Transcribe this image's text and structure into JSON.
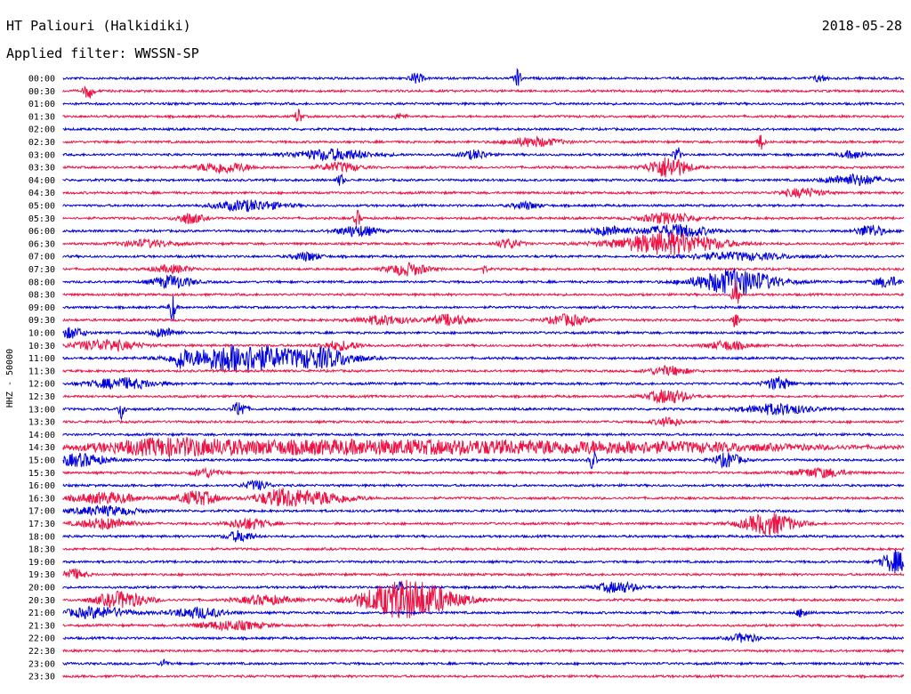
{
  "header": {
    "station": "HT Paliouri (Halkidiki)",
    "date": "2018-05-28",
    "filter": "Applied filter: WWSSN-SP"
  },
  "chart_data": {
    "type": "line",
    "title": "HT Paliouri (Halkidiki)",
    "subtitle": "Applied filter: WWSSN-SP",
    "ylabel": "HHZ - 50000",
    "xlabel": "",
    "colors": {
      "even": "#0000dd",
      "odd": "#ee1144"
    },
    "rows": [
      {
        "label": "00:00",
        "color": "even",
        "bursts": [
          [
            0.42,
            0.01,
            6
          ],
          [
            0.54,
            0.005,
            12
          ],
          [
            0.9,
            0.01,
            4
          ]
        ]
      },
      {
        "label": "00:30",
        "color": "odd",
        "bursts": [
          [
            0.03,
            0.008,
            8
          ]
        ]
      },
      {
        "label": "01:00",
        "color": "even",
        "bursts": []
      },
      {
        "label": "01:30",
        "color": "odd",
        "bursts": [
          [
            0.28,
            0.005,
            9
          ],
          [
            0.4,
            0.01,
            3
          ]
        ]
      },
      {
        "label": "02:00",
        "color": "even",
        "bursts": []
      },
      {
        "label": "02:30",
        "color": "odd",
        "bursts": [
          [
            0.56,
            0.04,
            5
          ],
          [
            0.83,
            0.005,
            9
          ]
        ]
      },
      {
        "label": "03:00",
        "color": "even",
        "bursts": [
          [
            0.32,
            0.06,
            6
          ],
          [
            0.49,
            0.02,
            5
          ],
          [
            0.73,
            0.005,
            10
          ],
          [
            0.94,
            0.02,
            4
          ]
        ]
      },
      {
        "label": "03:30",
        "color": "odd",
        "bursts": [
          [
            0.19,
            0.04,
            6
          ],
          [
            0.33,
            0.03,
            5
          ],
          [
            0.72,
            0.03,
            12
          ]
        ]
      },
      {
        "label": "04:00",
        "color": "even",
        "bursts": [
          [
            0.33,
            0.005,
            7
          ],
          [
            0.94,
            0.04,
            6
          ]
        ]
      },
      {
        "label": "04:30",
        "color": "odd",
        "bursts": [
          [
            0.88,
            0.03,
            5
          ]
        ]
      },
      {
        "label": "05:00",
        "color": "even",
        "bursts": [
          [
            0.22,
            0.05,
            6
          ],
          [
            0.55,
            0.02,
            4
          ]
        ]
      },
      {
        "label": "05:30",
        "color": "odd",
        "bursts": [
          [
            0.15,
            0.02,
            6
          ],
          [
            0.35,
            0.005,
            9
          ],
          [
            0.72,
            0.04,
            6
          ]
        ]
      },
      {
        "label": "06:00",
        "color": "even",
        "bursts": [
          [
            0.35,
            0.03,
            6
          ],
          [
            0.65,
            0.03,
            5
          ],
          [
            0.73,
            0.05,
            7
          ],
          [
            0.96,
            0.02,
            7
          ]
        ]
      },
      {
        "label": "06:30",
        "color": "odd",
        "bursts": [
          [
            0.1,
            0.04,
            4
          ],
          [
            0.53,
            0.02,
            5
          ],
          [
            0.72,
            0.08,
            12
          ]
        ]
      },
      {
        "label": "07:00",
        "color": "even",
        "bursts": [
          [
            0.29,
            0.02,
            5
          ],
          [
            0.8,
            0.08,
            4
          ]
        ]
      },
      {
        "label": "07:30",
        "color": "odd",
        "bursts": [
          [
            0.13,
            0.03,
            4
          ],
          [
            0.41,
            0.03,
            7
          ],
          [
            0.5,
            0.005,
            5
          ]
        ]
      },
      {
        "label": "08:00",
        "color": "even",
        "bursts": [
          [
            0.13,
            0.03,
            7
          ],
          [
            0.8,
            0.06,
            14
          ],
          [
            0.98,
            0.02,
            6
          ]
        ]
      },
      {
        "label": "08:30",
        "color": "odd",
        "bursts": [
          [
            0.8,
            0.005,
            20
          ]
        ]
      },
      {
        "label": "09:00",
        "color": "even",
        "bursts": [
          [
            0.13,
            0.005,
            16
          ]
        ]
      },
      {
        "label": "09:30",
        "color": "odd",
        "bursts": [
          [
            0.38,
            0.04,
            5
          ],
          [
            0.46,
            0.03,
            6
          ],
          [
            0.6,
            0.03,
            6
          ],
          [
            0.8,
            0.005,
            9
          ]
        ]
      },
      {
        "label": "10:00",
        "color": "even",
        "bursts": [
          [
            0.01,
            0.02,
            6
          ],
          [
            0.12,
            0.02,
            5
          ]
        ]
      },
      {
        "label": "10:30",
        "color": "odd",
        "bursts": [
          [
            0.05,
            0.05,
            6
          ],
          [
            0.33,
            0.03,
            5
          ],
          [
            0.79,
            0.03,
            5
          ]
        ]
      },
      {
        "label": "11:00",
        "color": "even",
        "bursts": [
          [
            0.14,
            0.01,
            9
          ],
          [
            0.21,
            0.08,
            16
          ],
          [
            0.31,
            0.05,
            10
          ]
        ]
      },
      {
        "label": "11:30",
        "color": "odd",
        "bursts": [
          [
            0.72,
            0.03,
            5
          ]
        ]
      },
      {
        "label": "12:00",
        "color": "even",
        "bursts": [
          [
            0.07,
            0.05,
            6
          ],
          [
            0.85,
            0.02,
            7
          ]
        ]
      },
      {
        "label": "12:30",
        "color": "odd",
        "bursts": [
          [
            0.72,
            0.03,
            8
          ]
        ]
      },
      {
        "label": "13:00",
        "color": "even",
        "bursts": [
          [
            0.07,
            0.005,
            12
          ],
          [
            0.21,
            0.01,
            9
          ],
          [
            0.85,
            0.05,
            6
          ]
        ]
      },
      {
        "label": "13:30",
        "color": "odd",
        "bursts": [
          [
            0.72,
            0.02,
            5
          ]
        ]
      },
      {
        "label": "14:00",
        "color": "even",
        "bursts": []
      },
      {
        "label": "14:30",
        "color": "odd",
        "bursts": [
          [
            0.12,
            0.1,
            6
          ],
          [
            0.3,
            0.3,
            7
          ],
          [
            0.65,
            0.3,
            6
          ]
        ]
      },
      {
        "label": "15:00",
        "color": "even",
        "bursts": [
          [
            0.02,
            0.04,
            7
          ],
          [
            0.63,
            0.005,
            12
          ],
          [
            0.79,
            0.02,
            8
          ]
        ]
      },
      {
        "label": "15:30",
        "color": "odd",
        "bursts": [
          [
            0.17,
            0.02,
            5
          ],
          [
            0.9,
            0.04,
            5
          ]
        ]
      },
      {
        "label": "16:00",
        "color": "even",
        "bursts": [
          [
            0.23,
            0.02,
            5
          ]
        ]
      },
      {
        "label": "16:30",
        "color": "odd",
        "bursts": [
          [
            0.05,
            0.05,
            6
          ],
          [
            0.16,
            0.03,
            8
          ],
          [
            0.26,
            0.04,
            9
          ],
          [
            0.31,
            0.05,
            6
          ]
        ]
      },
      {
        "label": "17:00",
        "color": "even",
        "bursts": [
          [
            0.05,
            0.05,
            5
          ]
        ]
      },
      {
        "label": "17:30",
        "color": "odd",
        "bursts": [
          [
            0.05,
            0.04,
            6
          ],
          [
            0.22,
            0.03,
            6
          ],
          [
            0.84,
            0.04,
            12
          ]
        ]
      },
      {
        "label": "18:00",
        "color": "even",
        "bursts": [
          [
            0.21,
            0.02,
            6
          ]
        ]
      },
      {
        "label": "18:30",
        "color": "odd",
        "bursts": []
      },
      {
        "label": "19:00",
        "color": "even",
        "bursts": [
          [
            0.99,
            0.02,
            12
          ]
        ]
      },
      {
        "label": "19:30",
        "color": "odd",
        "bursts": [
          [
            0.01,
            0.02,
            6
          ]
        ]
      },
      {
        "label": "20:00",
        "color": "even",
        "bursts": [
          [
            0.4,
            0.005,
            7
          ],
          [
            0.66,
            0.03,
            6
          ]
        ]
      },
      {
        "label": "20:30",
        "color": "odd",
        "bursts": [
          [
            0.07,
            0.04,
            9
          ],
          [
            0.41,
            0.07,
            22
          ],
          [
            0.24,
            0.04,
            5
          ]
        ]
      },
      {
        "label": "21:00",
        "color": "even",
        "bursts": [
          [
            0.04,
            0.05,
            6
          ],
          [
            0.16,
            0.04,
            6
          ],
          [
            0.88,
            0.01,
            5
          ]
        ]
      },
      {
        "label": "21:30",
        "color": "odd",
        "bursts": [
          [
            0.2,
            0.05,
            5
          ]
        ]
      },
      {
        "label": "22:00",
        "color": "even",
        "bursts": [
          [
            0.81,
            0.02,
            5
          ]
        ]
      },
      {
        "label": "22:30",
        "color": "odd",
        "bursts": []
      },
      {
        "label": "23:00",
        "color": "even",
        "bursts": [
          [
            0.12,
            0.005,
            6
          ]
        ]
      },
      {
        "label": "23:30",
        "color": "odd",
        "bursts": []
      }
    ]
  }
}
